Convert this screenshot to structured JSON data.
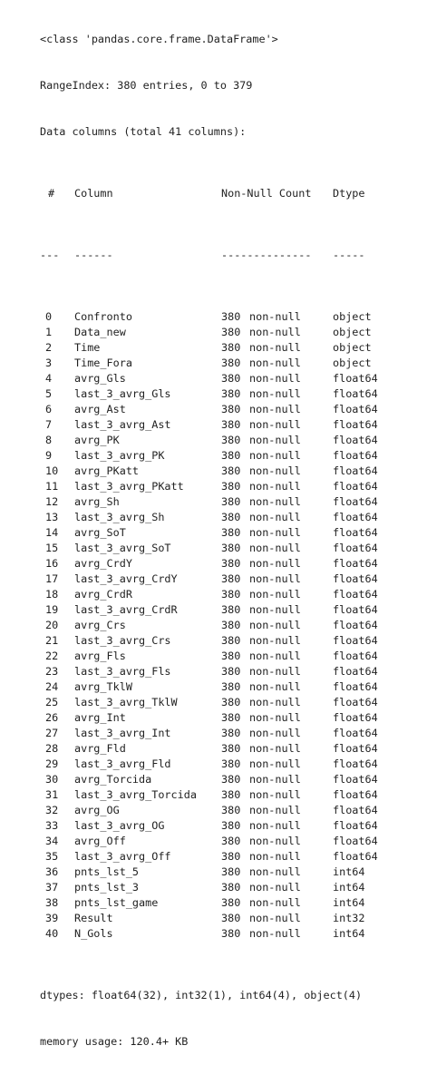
{
  "class_line": "<class 'pandas.core.frame.DataFrame'>",
  "range_index": "RangeIndex: 380 entries, 0 to 379",
  "data_columns": "Data columns (total 41 columns):",
  "headers": {
    "idx": "#",
    "column": "Column",
    "count": "Non-Null Count",
    "dtype": "Dtype"
  },
  "separators": {
    "idx": "---",
    "column": "------",
    "count": "--------------",
    "dtype": "-----"
  },
  "columns": [
    {
      "idx": "0",
      "name": "Confronto",
      "count": "380",
      "nn": "non-null",
      "dtype": "object"
    },
    {
      "idx": "1",
      "name": "Data_new",
      "count": "380",
      "nn": "non-null",
      "dtype": "object"
    },
    {
      "idx": "2",
      "name": "Time",
      "count": "380",
      "nn": "non-null",
      "dtype": "object"
    },
    {
      "idx": "3",
      "name": "Time_Fora",
      "count": "380",
      "nn": "non-null",
      "dtype": "object"
    },
    {
      "idx": "4",
      "name": "avrg_Gls",
      "count": "380",
      "nn": "non-null",
      "dtype": "float64"
    },
    {
      "idx": "5",
      "name": "last_3_avrg_Gls",
      "count": "380",
      "nn": "non-null",
      "dtype": "float64"
    },
    {
      "idx": "6",
      "name": "avrg_Ast",
      "count": "380",
      "nn": "non-null",
      "dtype": "float64"
    },
    {
      "idx": "7",
      "name": "last_3_avrg_Ast",
      "count": "380",
      "nn": "non-null",
      "dtype": "float64"
    },
    {
      "idx": "8",
      "name": "avrg_PK",
      "count": "380",
      "nn": "non-null",
      "dtype": "float64"
    },
    {
      "idx": "9",
      "name": "last_3_avrg_PK",
      "count": "380",
      "nn": "non-null",
      "dtype": "float64"
    },
    {
      "idx": "10",
      "name": "avrg_PKatt",
      "count": "380",
      "nn": "non-null",
      "dtype": "float64"
    },
    {
      "idx": "11",
      "name": "last_3_avrg_PKatt",
      "count": "380",
      "nn": "non-null",
      "dtype": "float64"
    },
    {
      "idx": "12",
      "name": "avrg_Sh",
      "count": "380",
      "nn": "non-null",
      "dtype": "float64"
    },
    {
      "idx": "13",
      "name": "last_3_avrg_Sh",
      "count": "380",
      "nn": "non-null",
      "dtype": "float64"
    },
    {
      "idx": "14",
      "name": "avrg_SoT",
      "count": "380",
      "nn": "non-null",
      "dtype": "float64"
    },
    {
      "idx": "15",
      "name": "last_3_avrg_SoT",
      "count": "380",
      "nn": "non-null",
      "dtype": "float64"
    },
    {
      "idx": "16",
      "name": "avrg_CrdY",
      "count": "380",
      "nn": "non-null",
      "dtype": "float64"
    },
    {
      "idx": "17",
      "name": "last_3_avrg_CrdY",
      "count": "380",
      "nn": "non-null",
      "dtype": "float64"
    },
    {
      "idx": "18",
      "name": "avrg_CrdR",
      "count": "380",
      "nn": "non-null",
      "dtype": "float64"
    },
    {
      "idx": "19",
      "name": "last_3_avrg_CrdR",
      "count": "380",
      "nn": "non-null",
      "dtype": "float64"
    },
    {
      "idx": "20",
      "name": "avrg_Crs",
      "count": "380",
      "nn": "non-null",
      "dtype": "float64"
    },
    {
      "idx": "21",
      "name": "last_3_avrg_Crs",
      "count": "380",
      "nn": "non-null",
      "dtype": "float64"
    },
    {
      "idx": "22",
      "name": "avrg_Fls",
      "count": "380",
      "nn": "non-null",
      "dtype": "float64"
    },
    {
      "idx": "23",
      "name": "last_3_avrg_Fls",
      "count": "380",
      "nn": "non-null",
      "dtype": "float64"
    },
    {
      "idx": "24",
      "name": "avrg_TklW",
      "count": "380",
      "nn": "non-null",
      "dtype": "float64"
    },
    {
      "idx": "25",
      "name": "last_3_avrg_TklW",
      "count": "380",
      "nn": "non-null",
      "dtype": "float64"
    },
    {
      "idx": "26",
      "name": "avrg_Int",
      "count": "380",
      "nn": "non-null",
      "dtype": "float64"
    },
    {
      "idx": "27",
      "name": "last_3_avrg_Int",
      "count": "380",
      "nn": "non-null",
      "dtype": "float64"
    },
    {
      "idx": "28",
      "name": "avrg_Fld",
      "count": "380",
      "nn": "non-null",
      "dtype": "float64"
    },
    {
      "idx": "29",
      "name": "last_3_avrg_Fld",
      "count": "380",
      "nn": "non-null",
      "dtype": "float64"
    },
    {
      "idx": "30",
      "name": "avrg_Torcida",
      "count": "380",
      "nn": "non-null",
      "dtype": "float64"
    },
    {
      "idx": "31",
      "name": "last_3_avrg_Torcida",
      "count": "380",
      "nn": "non-null",
      "dtype": "float64"
    },
    {
      "idx": "32",
      "name": "avrg_OG",
      "count": "380",
      "nn": "non-null",
      "dtype": "float64"
    },
    {
      "idx": "33",
      "name": "last_3_avrg_OG",
      "count": "380",
      "nn": "non-null",
      "dtype": "float64"
    },
    {
      "idx": "34",
      "name": "avrg_Off",
      "count": "380",
      "nn": "non-null",
      "dtype": "float64"
    },
    {
      "idx": "35",
      "name": "last_3_avrg_Off",
      "count": "380",
      "nn": "non-null",
      "dtype": "float64"
    },
    {
      "idx": "36",
      "name": "pnts_lst_5",
      "count": "380",
      "nn": "non-null",
      "dtype": "int64"
    },
    {
      "idx": "37",
      "name": "pnts_lst_3",
      "count": "380",
      "nn": "non-null",
      "dtype": "int64"
    },
    {
      "idx": "38",
      "name": "pnts_lst_game",
      "count": "380",
      "nn": "non-null",
      "dtype": "int64"
    },
    {
      "idx": "39",
      "name": "Result",
      "count": "380",
      "nn": "non-null",
      "dtype": "int32"
    },
    {
      "idx": "40",
      "name": "N_Gols",
      "count": "380",
      "nn": "non-null",
      "dtype": "int64"
    }
  ],
  "dtypes_line": "dtypes: float64(32), int32(1), int64(4), object(4)",
  "memory_line": "memory usage: 120.4+ KB"
}
